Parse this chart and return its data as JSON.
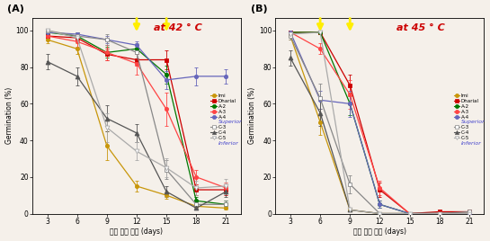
{
  "days": [
    3,
    6,
    9,
    12,
    15,
    18,
    21
  ],
  "panel_A": {
    "title": "at 42 ° C",
    "label": "(A)",
    "arrow_days": [
      12,
      15
    ],
    "series": {
      "Imi": {
        "color": "#c8960a",
        "marker": "o",
        "ms": 3.0,
        "lw": 0.9,
        "mfc": "#c8960a",
        "values": [
          95,
          90,
          37,
          15,
          10,
          4,
          3
        ],
        "yerr": [
          2,
          3,
          8,
          3,
          2,
          1,
          1
        ]
      },
      "Dharial": {
        "color": "#cc0000",
        "marker": "s",
        "ms": 3.0,
        "lw": 0.9,
        "mfc": "#cc0000",
        "values": [
          97,
          96,
          87,
          84,
          84,
          13,
          13
        ],
        "yerr": [
          1,
          2,
          3,
          3,
          5,
          3,
          3
        ]
      },
      "A-2": {
        "color": "#007700",
        "marker": "o",
        "ms": 3.0,
        "lw": 0.9,
        "mfc": "#007700",
        "values": [
          99,
          97,
          88,
          90,
          76,
          7,
          5
        ],
        "yerr": [
          1,
          2,
          3,
          2,
          5,
          2,
          2
        ]
      },
      "A-3": {
        "color": "#ff4444",
        "marker": "o",
        "ms": 3.0,
        "lw": 0.9,
        "mfc": "#ff4444",
        "values": [
          97,
          94,
          88,
          82,
          57,
          20,
          14
        ],
        "yerr": [
          2,
          3,
          4,
          6,
          9,
          4,
          3
        ]
      },
      "A-4": {
        "color": "#6666bb",
        "marker": "o",
        "ms": 3.0,
        "lw": 0.9,
        "mfc": "#6666bb",
        "values": [
          99,
          98,
          95,
          92,
          73,
          75,
          75
        ],
        "yerr": [
          1,
          1,
          2,
          2,
          5,
          5,
          4
        ]
      },
      "C-3": {
        "color": "#888888",
        "marker": "s",
        "ms": 3.5,
        "lw": 0.9,
        "mfc": "white",
        "values": [
          100,
          97,
          95,
          88,
          24,
          5,
          5
        ],
        "yerr": [
          0,
          2,
          3,
          5,
          5,
          2,
          2
        ]
      },
      "C-4": {
        "color": "#555555",
        "marker": "^",
        "ms": 3.5,
        "lw": 0.9,
        "mfc": "#555555",
        "values": [
          83,
          75,
          52,
          44,
          12,
          3,
          12
        ],
        "yerr": [
          4,
          5,
          7,
          5,
          3,
          1,
          3
        ]
      },
      "C-5": {
        "color": "#aaaaaa",
        "marker": "v",
        "ms": 3.5,
        "lw": 0.9,
        "mfc": "white",
        "values": [
          100,
          96,
          47,
          34,
          25,
          14,
          15
        ],
        "yerr": [
          0,
          2,
          8,
          5,
          5,
          4,
          4
        ]
      }
    }
  },
  "panel_B": {
    "title": "at 45 ° C",
    "label": "(B)",
    "arrow_days": [
      6,
      9
    ],
    "series": {
      "Imi": {
        "color": "#c8960a",
        "marker": "o",
        "ms": 3.0,
        "lw": 0.9,
        "mfc": "#c8960a",
        "values": [
          97,
          50,
          2,
          0,
          0,
          0,
          0
        ],
        "yerr": [
          2,
          7,
          1,
          0,
          0,
          0,
          0
        ]
      },
      "Dharial": {
        "color": "#cc0000",
        "marker": "s",
        "ms": 3.0,
        "lw": 0.9,
        "mfc": "#cc0000",
        "values": [
          99,
          99,
          70,
          13,
          0,
          1,
          1
        ],
        "yerr": [
          1,
          1,
          6,
          4,
          0,
          0,
          0
        ]
      },
      "A-2": {
        "color": "#007700",
        "marker": "o",
        "ms": 3.0,
        "lw": 0.9,
        "mfc": "#007700",
        "values": [
          99,
          99,
          60,
          5,
          0,
          0,
          0
        ],
        "yerr": [
          1,
          1,
          6,
          2,
          0,
          0,
          0
        ]
      },
      "A-3": {
        "color": "#ff4444",
        "marker": "o",
        "ms": 3.0,
        "lw": 0.9,
        "mfc": "#ff4444",
        "values": [
          99,
          90,
          65,
          14,
          0,
          0,
          0
        ],
        "yerr": [
          1,
          3,
          8,
          4,
          0,
          0,
          0
        ]
      },
      "A-4": {
        "color": "#6666bb",
        "marker": "o",
        "ms": 3.0,
        "lw": 0.9,
        "mfc": "#6666bb",
        "values": [
          99,
          62,
          60,
          5,
          0,
          0,
          0
        ],
        "yerr": [
          1,
          5,
          7,
          2,
          0,
          0,
          0
        ]
      },
      "C-3": {
        "color": "#888888",
        "marker": "s",
        "ms": 3.5,
        "lw": 0.9,
        "mfc": "white",
        "values": [
          97,
          63,
          16,
          0,
          0,
          0,
          1
        ],
        "yerr": [
          2,
          8,
          5,
          0,
          0,
          0,
          1
        ]
      },
      "C-4": {
        "color": "#555555",
        "marker": "^",
        "ms": 3.5,
        "lw": 0.9,
        "mfc": "#555555",
        "values": [
          85,
          55,
          2,
          0,
          0,
          0,
          0
        ],
        "yerr": [
          4,
          7,
          1,
          0,
          0,
          0,
          0
        ]
      },
      "C-5": {
        "color": "#aaaaaa",
        "marker": "v",
        "ms": 3.5,
        "lw": 0.9,
        "mfc": "white",
        "values": [
          98,
          99,
          2,
          0,
          0,
          0,
          0
        ],
        "yerr": [
          1,
          1,
          1,
          0,
          0,
          0,
          0
        ]
      }
    }
  },
  "xlabel": "퇴화 처리 기간 (days)",
  "ylabel": "Germination (%)",
  "ylim": [
    0,
    107
  ],
  "xlim": [
    1.5,
    22.5
  ],
  "yticks": [
    0,
    20,
    40,
    60,
    80,
    100
  ],
  "superior_label": "Superior",
  "inferior_label": "Inferior",
  "bg_color": "#f5f0ea",
  "title_color": "#cc0000",
  "title_fontsize": 8,
  "arrow_color": "#ffee00"
}
